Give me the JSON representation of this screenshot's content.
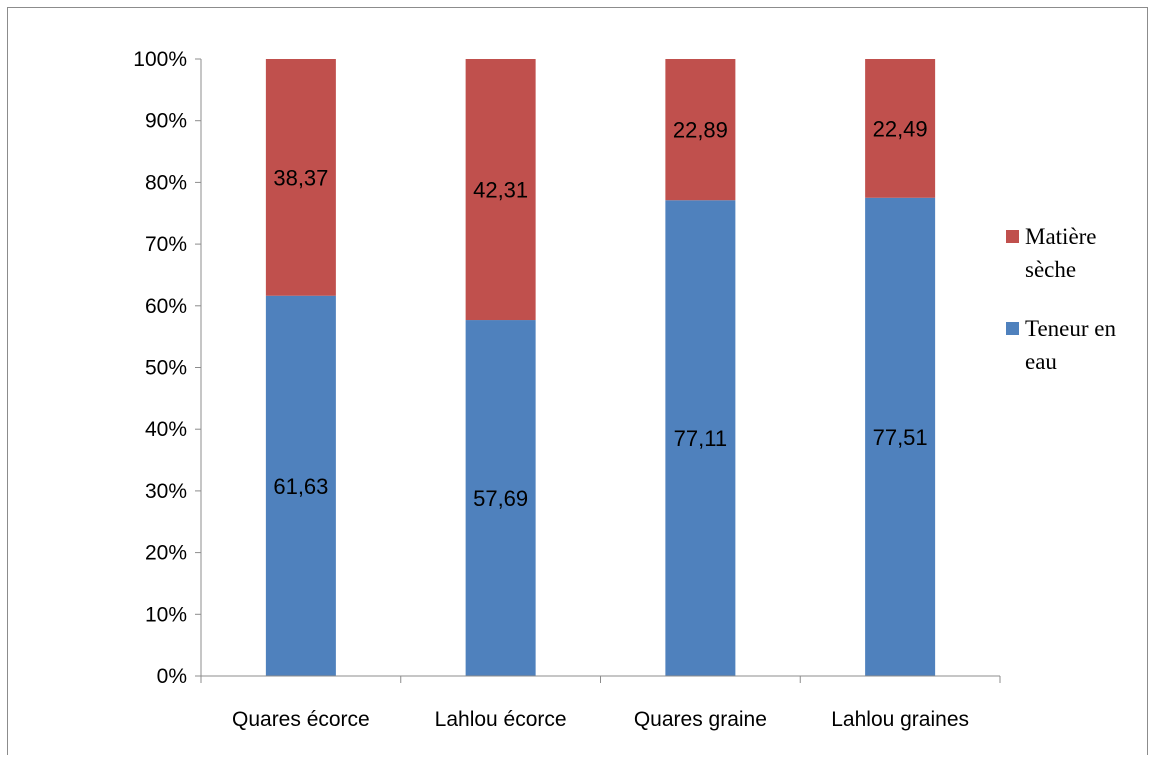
{
  "chart_data": {
    "type": "bar",
    "stacked": "percent",
    "categories": [
      "Quares écorce",
      "Lahlou écorce",
      "Quares graine",
      "Lahlou graines"
    ],
    "series": [
      {
        "name": "Teneur en eau",
        "name_lines": [
          "Teneur en",
          "eau"
        ],
        "color": "#4f81bd",
        "values": [
          61.63,
          57.69,
          77.11,
          77.51
        ],
        "labels": [
          "61,63",
          "57,69",
          "77,11",
          "77,51"
        ]
      },
      {
        "name": "Matière sèche",
        "name_lines": [
          "Matière",
          "sèche"
        ],
        "color": "#c0504d",
        "values": [
          38.37,
          42.31,
          22.89,
          22.49
        ],
        "labels": [
          "38,37",
          "42,31",
          "22,89",
          "22,49"
        ]
      }
    ],
    "ylim": [
      0,
      100
    ],
    "yticks": [
      "0%",
      "10%",
      "20%",
      "30%",
      "40%",
      "50%",
      "60%",
      "70%",
      "80%",
      "90%",
      "100%"
    ],
    "grid": false,
    "legend_position": "right"
  }
}
